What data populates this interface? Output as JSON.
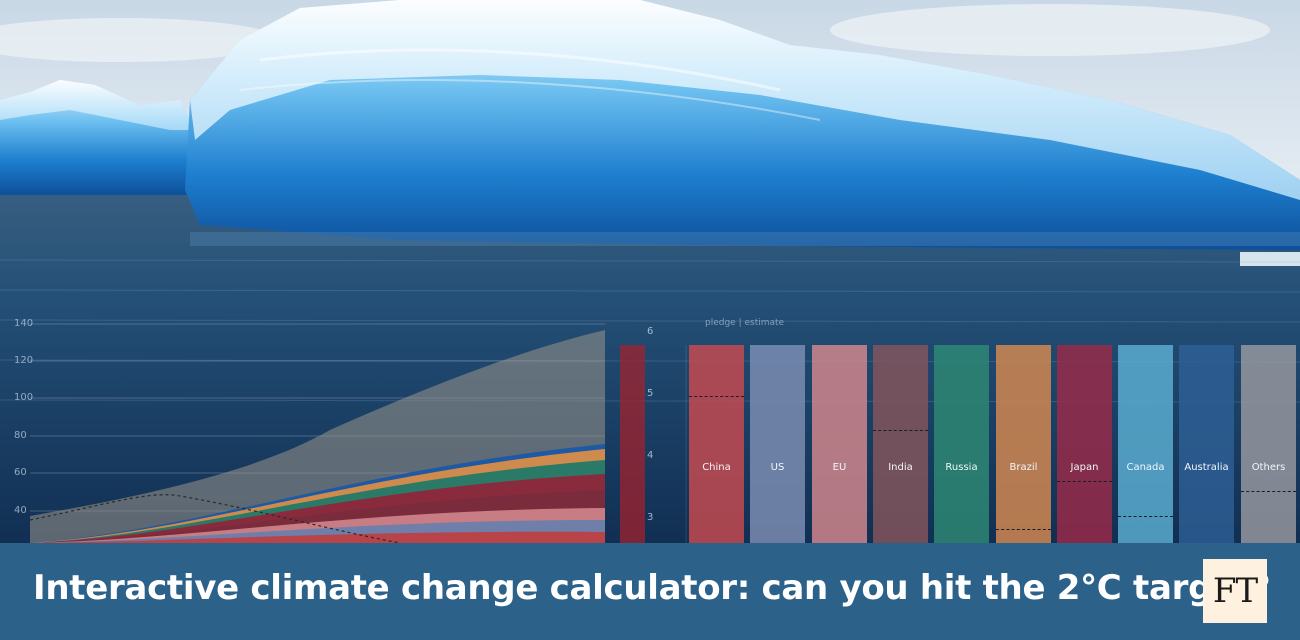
{
  "headline": "Interactive climate change calculator: can you hit the 2°C target?",
  "logo": "FT",
  "colors": {
    "banner": "#2c6189",
    "logo_bg": "#fff1e0"
  },
  "chart_data": [
    {
      "type": "area",
      "yticks": [
        "140",
        "120",
        "100",
        "80",
        "60",
        "40"
      ],
      "ylim": [
        30,
        140
      ]
    },
    {
      "type": "bar",
      "legend_text": "pledge | estimate",
      "right_caption": "",
      "yticks": [
        "6",
        "5",
        "4",
        "3"
      ],
      "categories": [
        "China",
        "US",
        "EU",
        "India",
        "Russia",
        "Brazil",
        "Japan",
        "Canada",
        "Australia",
        "Others"
      ],
      "colors": [
        "#c94a4f",
        "#7f8fb4",
        "#d7898d",
        "#86555c",
        "#2e8a74",
        "#d88a4f",
        "#9c2a48",
        "#5cb0d3",
        "#2e5f96",
        "#9a9aa0"
      ],
      "category_labels_drawn": [
        "China",
        "US",
        "EU",
        "India",
        "Russia",
        "Brazil",
        "Japan",
        "Canada",
        "Australia",
        "Others"
      ]
    }
  ]
}
